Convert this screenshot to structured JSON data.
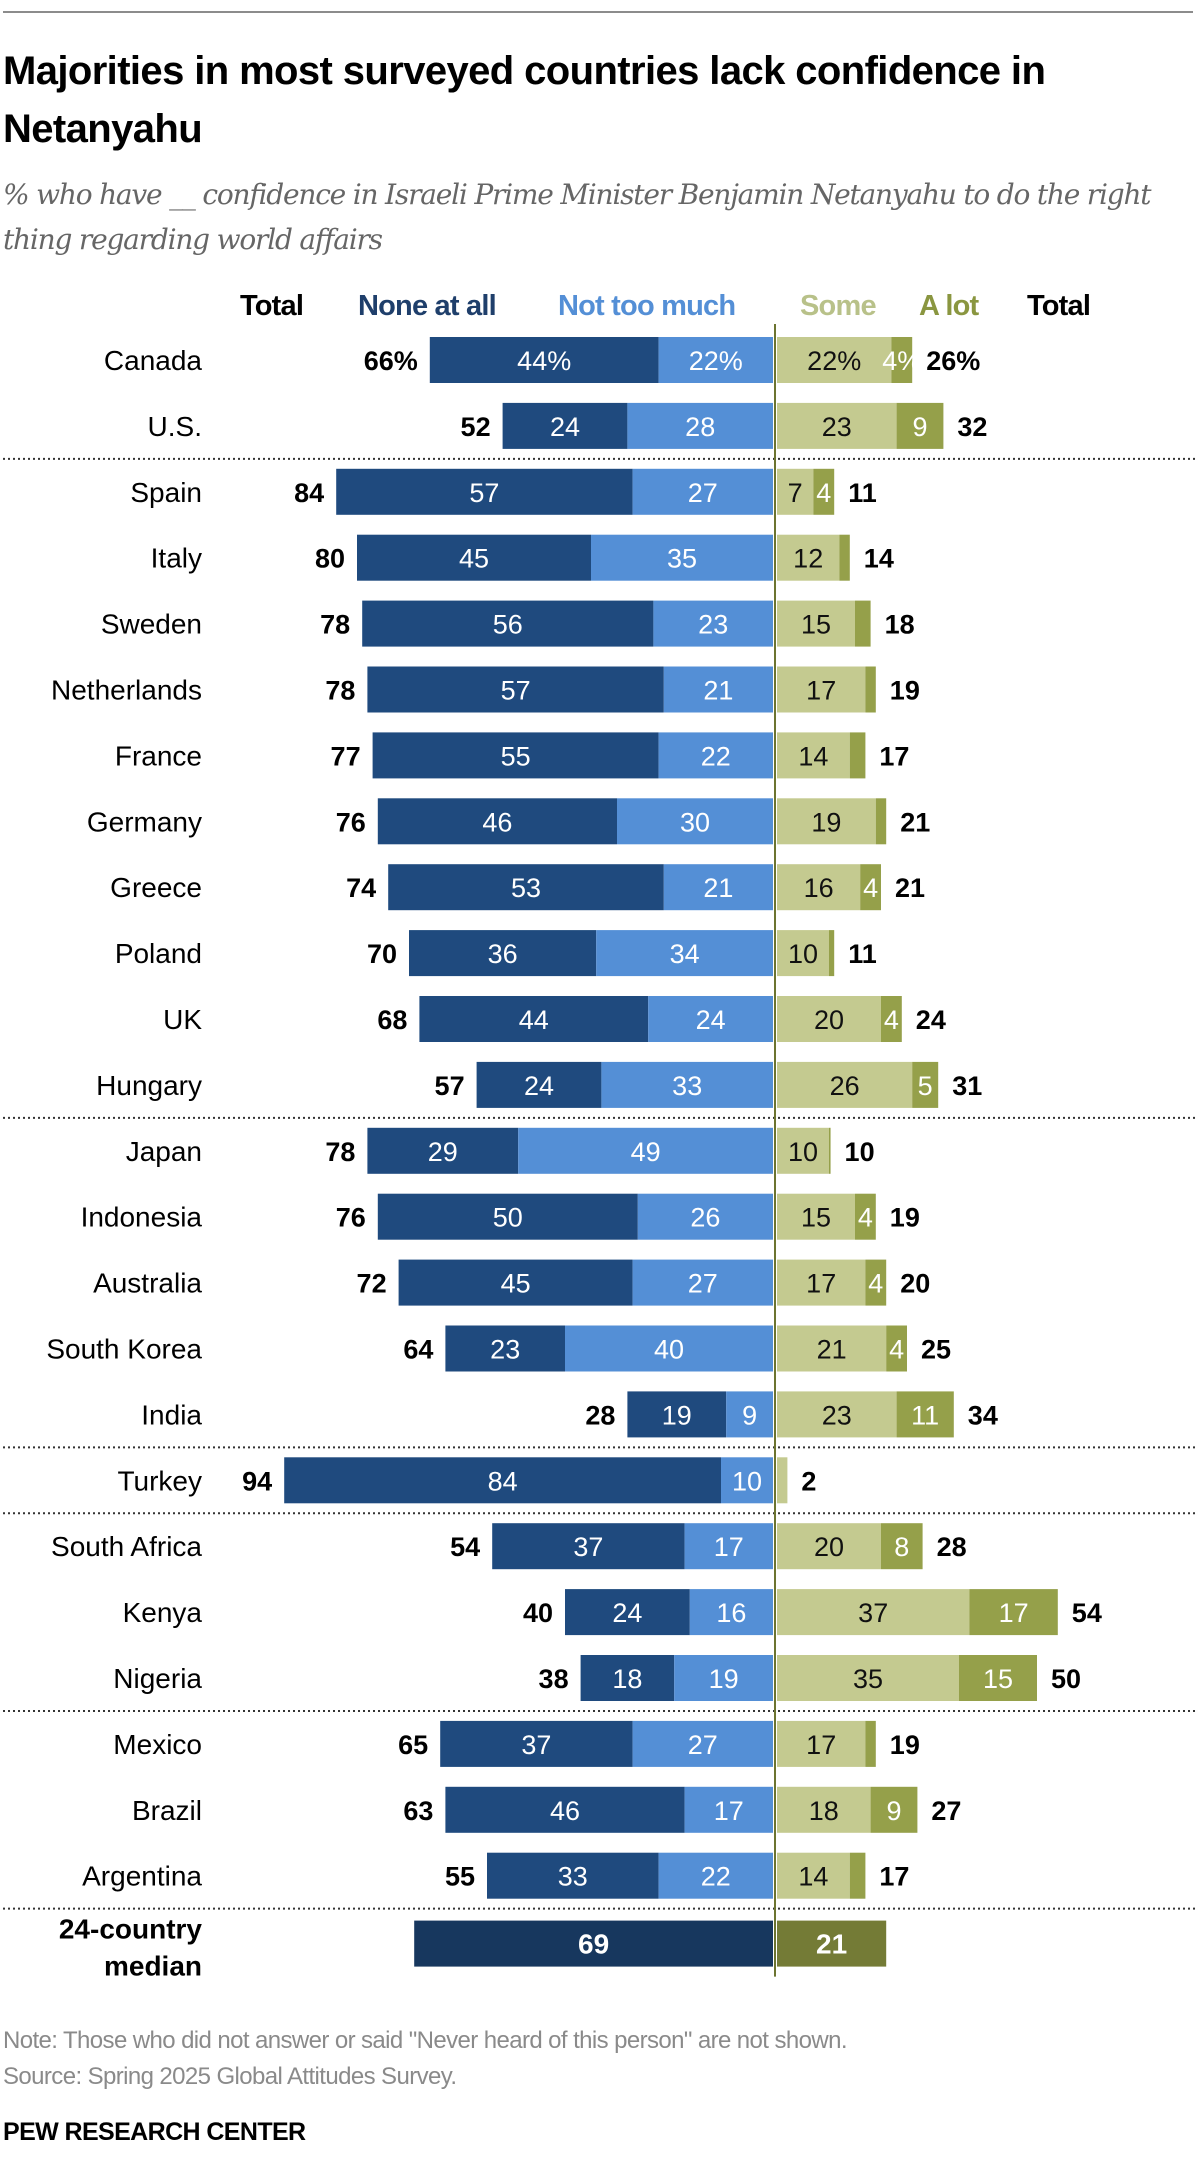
{
  "title": "Majorities in most surveyed countries lack confidence in Netanyahu",
  "subtitle": "% who have __ confidence in Israeli Prime Minister Benjamin Netanyahu to do the right thing regarding world affairs",
  "headers": {
    "total_left": "Total",
    "none": "None at all",
    "not_too_much": "Not too much",
    "some": "Some",
    "a_lot": "A lot",
    "total_right": "Total"
  },
  "colors": {
    "none": "#1f4a7e",
    "not_too_much": "#548fd6",
    "some": "#c4ca90",
    "a_lot": "#95a04a",
    "median_negative": "#17375e",
    "median_positive": "#747b36",
    "center_line": "#6c7430",
    "header_some": "#b8c189",
    "header_a_lot": "#8a9640"
  },
  "chart_data": {
    "type": "bar",
    "subtype": "diverging-stacked-horizontal",
    "title": "Majorities in most surveyed countries lack confidence in Netanyahu",
    "subtitle": "% who have __ confidence in Israeli Prime Minister Benjamin Netanyahu to do the right thing regarding world affairs",
    "unit": "%",
    "legend": [
      "None at all",
      "Not too much",
      "Some",
      "A lot"
    ],
    "legend_placement": "top",
    "categories": [
      "Canada",
      "U.S.",
      "Spain",
      "Italy",
      "Sweden",
      "Netherlands",
      "France",
      "Germany",
      "Greece",
      "Poland",
      "UK",
      "Hungary",
      "Japan",
      "Indonesia",
      "Australia",
      "South Korea",
      "India",
      "Turkey",
      "South Africa",
      "Kenya",
      "Nigeria",
      "Mexico",
      "Brazil",
      "Argentina"
    ],
    "group_breaks_after": [
      "U.S.",
      "Hungary",
      "India",
      "Turkey",
      "Nigeria",
      "Argentina"
    ],
    "rows": [
      {
        "country": "Canada",
        "total_neg": "66%",
        "none": 44,
        "none_label": "44%",
        "not_too_much": 22,
        "ntm_label": "22%",
        "some": 22,
        "some_label": "22%",
        "a_lot": 4,
        "alot_label": "4%",
        "total_pos": "26%"
      },
      {
        "country": "U.S.",
        "total_neg": "52",
        "none": 24,
        "none_label": "24",
        "not_too_much": 28,
        "ntm_label": "28",
        "some": 23,
        "some_label": "23",
        "a_lot": 9,
        "alot_label": "9",
        "total_pos": "32"
      },
      {
        "country": "Spain",
        "total_neg": "84",
        "none": 57,
        "none_label": "57",
        "not_too_much": 27,
        "ntm_label": "27",
        "some": 7,
        "some_label": "7",
        "a_lot": 4,
        "alot_label": "4",
        "total_pos": "11"
      },
      {
        "country": "Italy",
        "total_neg": "80",
        "none": 45,
        "none_label": "45",
        "not_too_much": 35,
        "ntm_label": "35",
        "some": 12,
        "some_label": "12",
        "a_lot": 2,
        "alot_label": "",
        "total_pos": "14"
      },
      {
        "country": "Sweden",
        "total_neg": "78",
        "none": 56,
        "none_label": "56",
        "not_too_much": 23,
        "ntm_label": "23",
        "some": 15,
        "some_label": "15",
        "a_lot": 3,
        "alot_label": "",
        "total_pos": "18"
      },
      {
        "country": "Netherlands",
        "total_neg": "78",
        "none": 57,
        "none_label": "57",
        "not_too_much": 21,
        "ntm_label": "21",
        "some": 17,
        "some_label": "17",
        "a_lot": 2,
        "alot_label": "",
        "total_pos": "19"
      },
      {
        "country": "France",
        "total_neg": "77",
        "none": 55,
        "none_label": "55",
        "not_too_much": 22,
        "ntm_label": "22",
        "some": 14,
        "some_label": "14",
        "a_lot": 3,
        "alot_label": "",
        "total_pos": "17"
      },
      {
        "country": "Germany",
        "total_neg": "76",
        "none": 46,
        "none_label": "46",
        "not_too_much": 30,
        "ntm_label": "30",
        "some": 19,
        "some_label": "19",
        "a_lot": 2,
        "alot_label": "",
        "total_pos": "21"
      },
      {
        "country": "Greece",
        "total_neg": "74",
        "none": 53,
        "none_label": "53",
        "not_too_much": 21,
        "ntm_label": "21",
        "some": 16,
        "some_label": "16",
        "a_lot": 4,
        "alot_label": "4",
        "total_pos": "21"
      },
      {
        "country": "Poland",
        "total_neg": "70",
        "none": 36,
        "none_label": "36",
        "not_too_much": 34,
        "ntm_label": "34",
        "some": 10,
        "some_label": "10",
        "a_lot": 1,
        "alot_label": "",
        "total_pos": "11"
      },
      {
        "country": "UK",
        "total_neg": "68",
        "none": 44,
        "none_label": "44",
        "not_too_much": 24,
        "ntm_label": "24",
        "some": 20,
        "some_label": "20",
        "a_lot": 4,
        "alot_label": "4",
        "total_pos": "24"
      },
      {
        "country": "Hungary",
        "total_neg": "57",
        "none": 24,
        "none_label": "24",
        "not_too_much": 33,
        "ntm_label": "33",
        "some": 26,
        "some_label": "26",
        "a_lot": 5,
        "alot_label": "5",
        "total_pos": "31"
      },
      {
        "country": "Japan",
        "total_neg": "78",
        "none": 29,
        "none_label": "29",
        "not_too_much": 49,
        "ntm_label": "49",
        "some": 10,
        "some_label": "10",
        "a_lot": 0.3,
        "alot_label": "",
        "total_pos": "10"
      },
      {
        "country": "Indonesia",
        "total_neg": "76",
        "none": 50,
        "none_label": "50",
        "not_too_much": 26,
        "ntm_label": "26",
        "some": 15,
        "some_label": "15",
        "a_lot": 4,
        "alot_label": "4",
        "total_pos": "19"
      },
      {
        "country": "Australia",
        "total_neg": "72",
        "none": 45,
        "none_label": "45",
        "not_too_much": 27,
        "ntm_label": "27",
        "some": 17,
        "some_label": "17",
        "a_lot": 4,
        "alot_label": "4",
        "total_pos": "20"
      },
      {
        "country": "South Korea",
        "total_neg": "64",
        "none": 23,
        "none_label": "23",
        "not_too_much": 40,
        "ntm_label": "40",
        "some": 21,
        "some_label": "21",
        "a_lot": 4,
        "alot_label": "4",
        "total_pos": "25"
      },
      {
        "country": "India",
        "total_neg": "28",
        "none": 19,
        "none_label": "19",
        "not_too_much": 9,
        "ntm_label": "9",
        "some": 23,
        "some_label": "23",
        "a_lot": 11,
        "alot_label": "11",
        "total_pos": "34"
      },
      {
        "country": "Turkey",
        "total_neg": "94",
        "none": 84,
        "none_label": "84",
        "not_too_much": 10,
        "ntm_label": "10",
        "some": 2,
        "some_label": "",
        "a_lot": 0,
        "alot_label": "",
        "total_pos": "2"
      },
      {
        "country": "South Africa",
        "total_neg": "54",
        "none": 37,
        "none_label": "37",
        "not_too_much": 17,
        "ntm_label": "17",
        "some": 20,
        "some_label": "20",
        "a_lot": 8,
        "alot_label": "8",
        "total_pos": "28"
      },
      {
        "country": "Kenya",
        "total_neg": "40",
        "none": 24,
        "none_label": "24",
        "not_too_much": 16,
        "ntm_label": "16",
        "some": 37,
        "some_label": "37",
        "a_lot": 17,
        "alot_label": "17",
        "total_pos": "54"
      },
      {
        "country": "Nigeria",
        "total_neg": "38",
        "none": 18,
        "none_label": "18",
        "not_too_much": 19,
        "ntm_label": "19",
        "some": 35,
        "some_label": "35",
        "a_lot": 15,
        "alot_label": "15",
        "total_pos": "50"
      },
      {
        "country": "Mexico",
        "total_neg": "65",
        "none": 37,
        "none_label": "37",
        "not_too_much": 27,
        "ntm_label": "27",
        "some": 17,
        "some_label": "17",
        "a_lot": 2,
        "alot_label": "",
        "total_pos": "19"
      },
      {
        "country": "Brazil",
        "total_neg": "63",
        "none": 46,
        "none_label": "46",
        "not_too_much": 17,
        "ntm_label": "17",
        "some": 18,
        "some_label": "18",
        "a_lot": 9,
        "alot_label": "9",
        "total_pos": "27"
      },
      {
        "country": "Argentina",
        "total_neg": "55",
        "none": 33,
        "none_label": "33",
        "not_too_much": 22,
        "ntm_label": "22",
        "some": 14,
        "some_label": "14",
        "a_lot": 3,
        "alot_label": "",
        "total_pos": "17"
      }
    ],
    "median": {
      "label_line1": "24-country",
      "label_line2": "median",
      "negative": 69,
      "negative_label": "69",
      "positive": 21,
      "positive_label": "21"
    }
  },
  "footer": {
    "note": "Note: Those who did not answer or said \"Never heard of this person\" are not shown.",
    "source": "Source: Spring 2025 Global Attitudes Survey.",
    "brand": "PEW RESEARCH CENTER"
  }
}
